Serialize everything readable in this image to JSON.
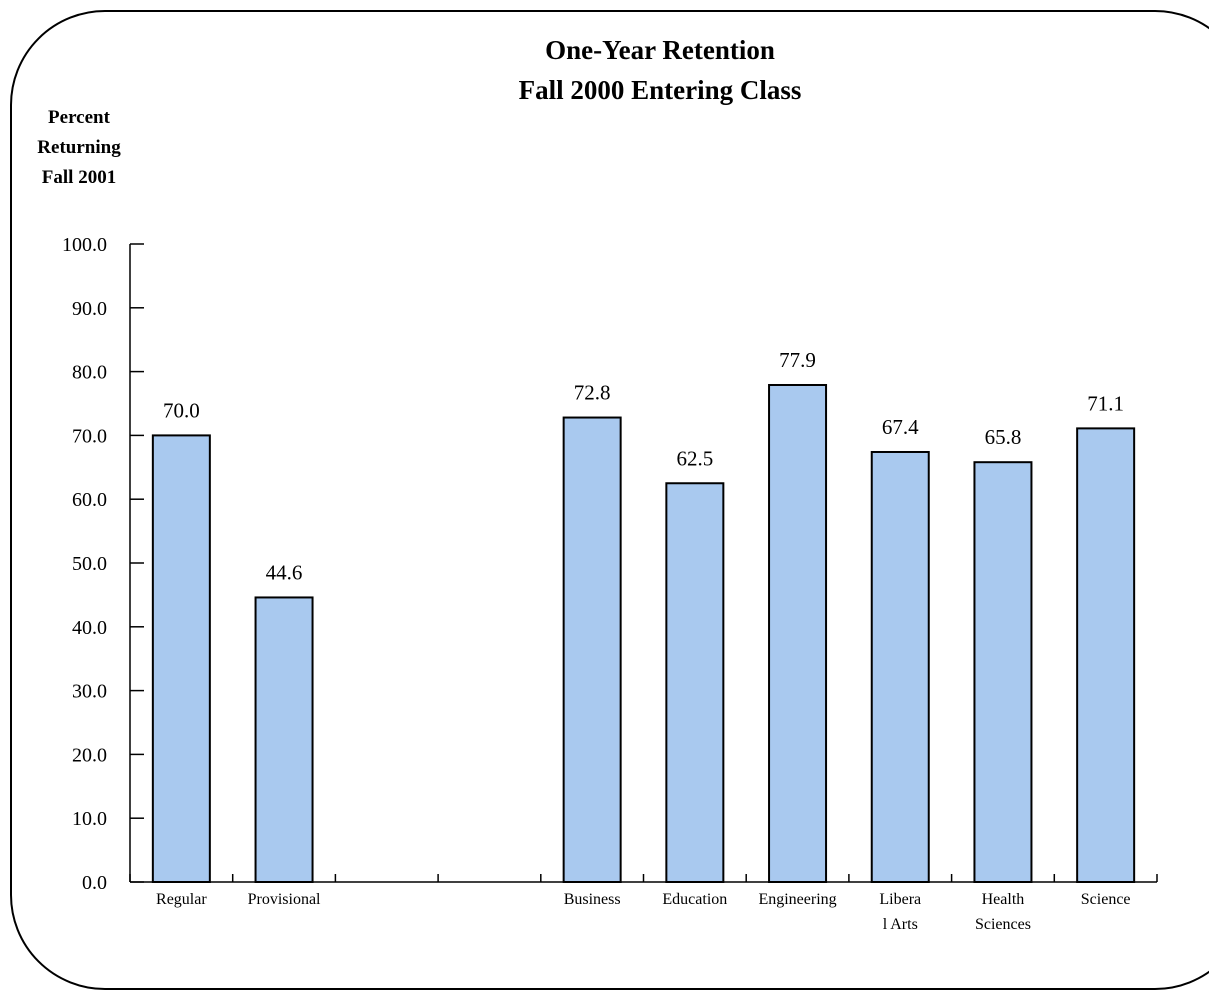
{
  "chart_data": {
    "type": "bar",
    "title": [
      "One-Year Retention",
      "Fall 2000 Entering Class"
    ],
    "ylabel": [
      "Percent",
      "Returning",
      "Fall 2001"
    ],
    "xlabel": "",
    "ylim": [
      0,
      100
    ],
    "y_ticks": [
      "0.0",
      "10.0",
      "20.0",
      "30.0",
      "40.0",
      "50.0",
      "60.0",
      "70.0",
      "80.0",
      "90.0",
      "100.0"
    ],
    "categories": [
      "Regular",
      "Provisional",
      "",
      "",
      "Business",
      "Education",
      "Engineering",
      "Libera l Arts",
      "Health Sciences",
      "Science"
    ],
    "category_label_lines": [
      [
        "Regular"
      ],
      [
        "Provisional"
      ],
      [
        ""
      ],
      [
        ""
      ],
      [
        "Business"
      ],
      [
        "Education"
      ],
      [
        "Engineering"
      ],
      [
        "Libera",
        "l Arts"
      ],
      [
        "Health",
        "Sciences"
      ],
      [
        "Science"
      ]
    ],
    "values": [
      70.0,
      44.6,
      null,
      null,
      72.8,
      62.5,
      77.9,
      67.4,
      65.8,
      71.1
    ],
    "value_labels": [
      "70.0",
      "44.6",
      "",
      "",
      "72.8",
      "62.5",
      "77.9",
      "67.4",
      "65.8",
      "71.1"
    ],
    "bar_color": "#a9c9ef",
    "bar_border_color": "#000000",
    "grid": false,
    "legend": "none"
  }
}
